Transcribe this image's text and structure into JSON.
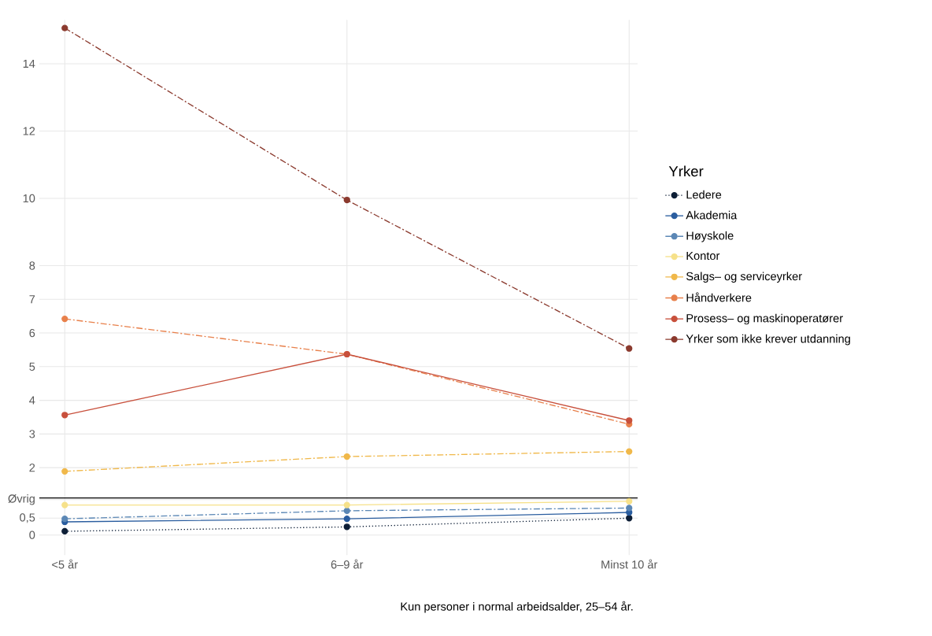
{
  "chart_data": {
    "type": "line",
    "categories": [
      "<5 år",
      "6–9 år",
      "Minst 10 år"
    ],
    "ylim": [
      -0.6,
      15.3
    ],
    "yticks": [
      0,
      {
        "value": 0.5,
        "label": "0,5"
      },
      {
        "value": 1.05,
        "label": "Øvrig"
      },
      2,
      3,
      4,
      5,
      6,
      7,
      8,
      10,
      12,
      14
    ],
    "legend_title": "Yrker",
    "legend": "right",
    "grid": true,
    "marker": "circle",
    "ref_lines": [
      {
        "axis": "y",
        "value": 1.1,
        "color": "#000000"
      }
    ],
    "annotations": [
      "Kun personer i normal arbeidsalder, 25–54 år."
    ],
    "series": [
      {
        "name": "Ledere",
        "color": "#0d1e36",
        "line_style": "dotted",
        "values": [
          0.11,
          0.24,
          0.5
        ]
      },
      {
        "name": "Akademia",
        "color": "#2a5d9f",
        "line_style": "solid",
        "values": [
          0.39,
          0.48,
          0.67
        ]
      },
      {
        "name": "Høyskole",
        "color": "#5b87b5",
        "line_style": "dashdot",
        "values": [
          0.48,
          0.72,
          0.8
        ]
      },
      {
        "name": "Kontor",
        "color": "#f6e18a",
        "line_style": "solid",
        "values": [
          0.89,
          0.89,
          1.0
        ]
      },
      {
        "name": "Salgs– og serviceyrker",
        "color": "#f0b84a",
        "line_style": "dashdot",
        "values": [
          1.89,
          2.33,
          2.48
        ]
      },
      {
        "name": "Håndverkere",
        "color": "#e8804b",
        "line_style": "dashdot",
        "values": [
          6.42,
          5.37,
          3.29
        ]
      },
      {
        "name": "Prosess– og maskinoperatører",
        "color": "#c8503c",
        "line_style": "solid",
        "values": [
          3.56,
          5.37,
          3.4
        ]
      },
      {
        "name": "Yrker som ikke krever utdanning",
        "color": "#8b3a2e",
        "line_style": "dashdot",
        "values": [
          15.06,
          9.95,
          5.54
        ]
      }
    ]
  }
}
